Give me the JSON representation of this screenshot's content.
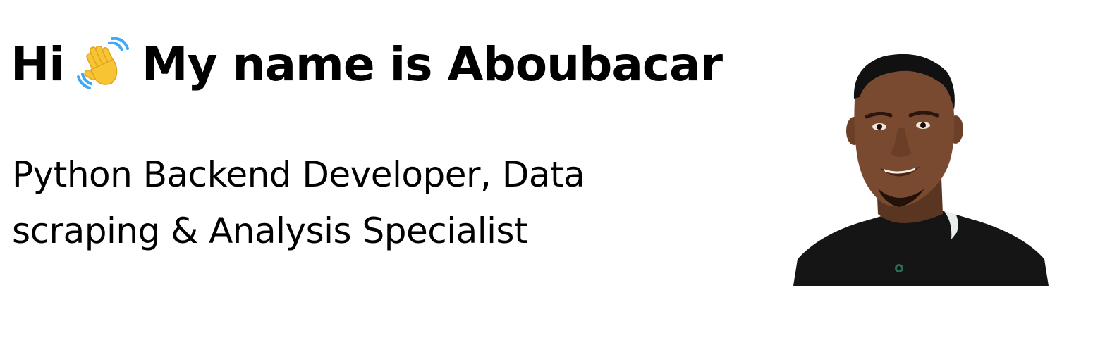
{
  "hero": {
    "greeting": "Hi",
    "intro": "My name is Aboubacar",
    "subtitle": "Python Backend Developer, Data scraping & Analysis Specialist",
    "wave_icon": "waving-hand-icon",
    "portrait": "avatar"
  },
  "colors": {
    "text": "#000000",
    "background": "#ffffff",
    "wave_yellow": "#f7c534",
    "wave_lines": "#3fa9f5"
  }
}
